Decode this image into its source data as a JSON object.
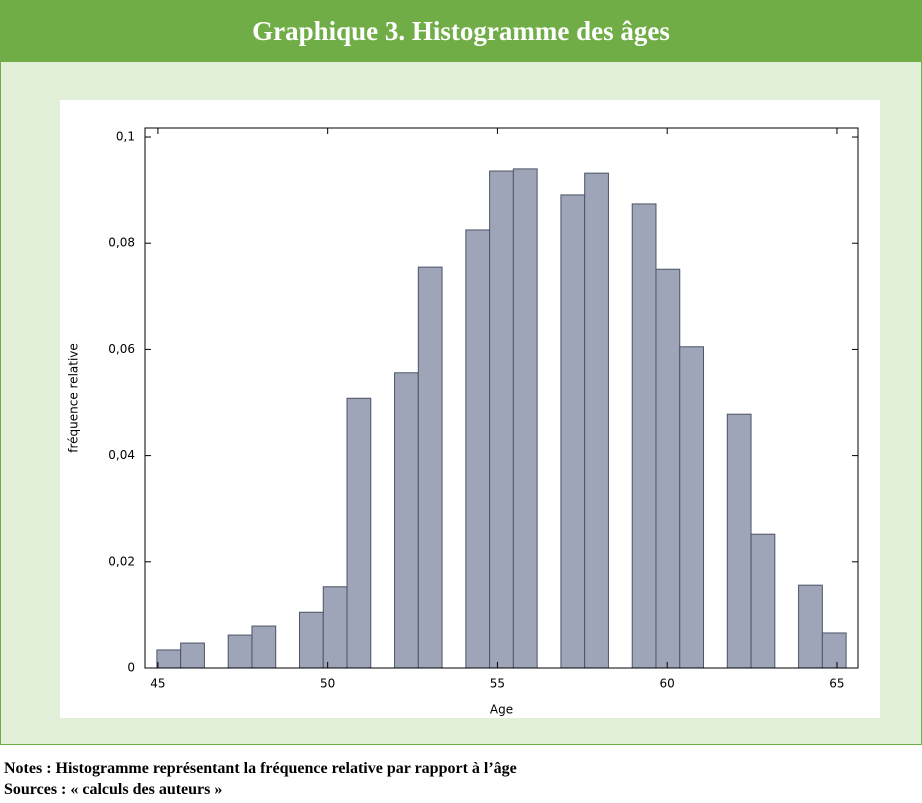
{
  "header": {
    "title": "Graphique 3. Histogramme des âges"
  },
  "chart_data": {
    "type": "histogram",
    "xlabel": "Age",
    "ylabel": "fréquence relative",
    "bins": [
      44.97,
      45.67,
      46.37,
      47.07,
      47.77,
      48.47,
      49.17,
      49.87,
      50.57,
      51.27,
      51.97,
      52.67,
      53.37,
      54.07,
      54.77,
      55.47,
      56.17,
      56.87,
      57.57,
      58.27,
      58.97,
      59.67,
      60.37,
      61.07,
      61.77,
      62.47,
      63.17,
      63.87,
      64.57,
      65.27
    ],
    "values": [
      0.0034,
      0.0047,
      0,
      0.0062,
      0.0079,
      0,
      0.0105,
      0.0153,
      0.0508,
      0,
      0.0556,
      0.0755,
      0,
      0.0825,
      0.0936,
      0.094,
      0,
      0.0891,
      0.0932,
      0,
      0.0874,
      0.0751,
      0.0605,
      0,
      0.0478,
      0.0252,
      0,
      0.0156,
      0.0066
    ],
    "color": "#9ea5b8",
    "xlim": [
      44.62,
      65.62
    ],
    "xticks": [
      45,
      50,
      55,
      60,
      65
    ],
    "ylim": [
      0,
      0.1017
    ],
    "yticks": [
      0,
      {
        "value": 0.02,
        "label": "0,02"
      },
      {
        "value": 0.04,
        "label": "0,04"
      },
      {
        "value": 0.06,
        "label": "0,06"
      },
      {
        "value": 0.08,
        "label": "0,08"
      },
      {
        "value": 0.1,
        "label": "0,1"
      }
    ]
  },
  "notes": [
    "Notes : Histogramme représentant la fréquence relative par rapport à l’âge",
    "Sources : « calculs des auteurs »"
  ]
}
